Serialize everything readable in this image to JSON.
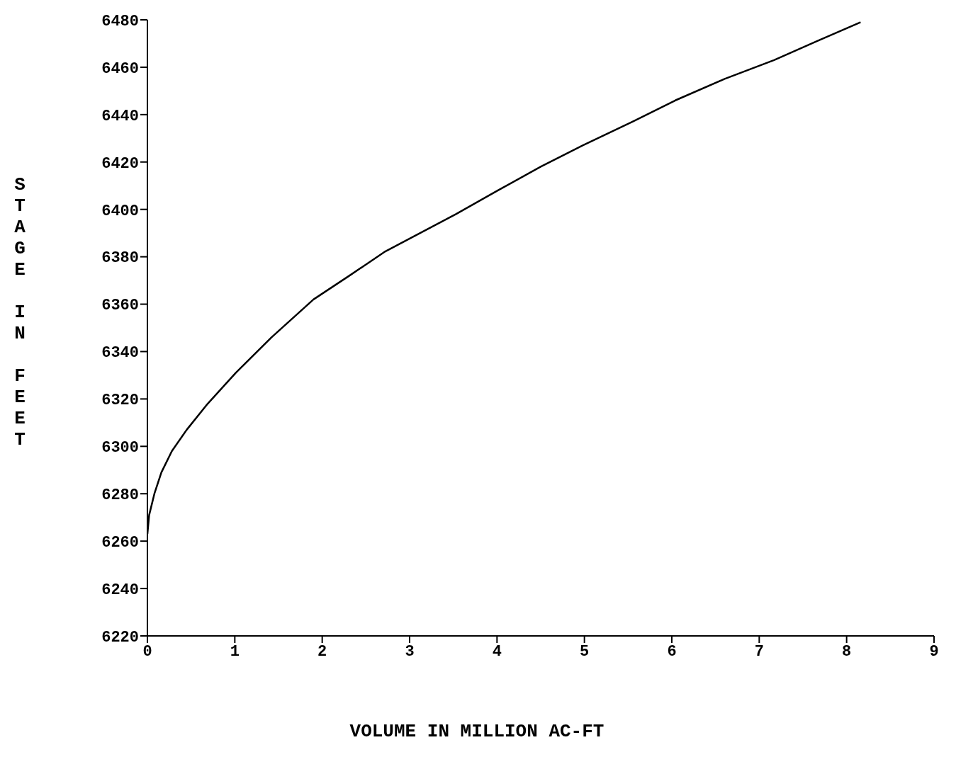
{
  "chart_data": {
    "type": "line",
    "xlabel": "VOLUME IN MILLION AC-FT",
    "ylabel": "STAGE IN FEET",
    "x": [
      0,
      0.02,
      0.08,
      0.16,
      0.28,
      0.45,
      0.69,
      1.01,
      1.42,
      1.9,
      2.31,
      2.71,
      3.12,
      3.53,
      4.01,
      4.5,
      4.98,
      5.55,
      6.04,
      6.6,
      7.17,
      7.66,
      8.16
    ],
    "series": [
      {
        "color": "#000000",
        "values": [
          6263,
          6271,
          6280,
          6289,
          6298,
          6307,
          6318,
          6331,
          6346,
          6362,
          6372,
          6382,
          6390,
          6398,
          6408,
          6418,
          6427,
          6437,
          6446,
          6455,
          6463,
          6471,
          6479
        ]
      }
    ],
    "xlim": [
      0,
      9
    ],
    "xticks": [
      0,
      1,
      2,
      3,
      4,
      5,
      6,
      7,
      8,
      9
    ],
    "ylim": [
      6220,
      6480
    ],
    "yticks": [
      6220,
      6240,
      6260,
      6280,
      6300,
      6320,
      6340,
      6360,
      6380,
      6400,
      6420,
      6440,
      6460,
      6480
    ],
    "grid": false,
    "legend": false,
    "marker": "none",
    "line_style": "solid"
  }
}
